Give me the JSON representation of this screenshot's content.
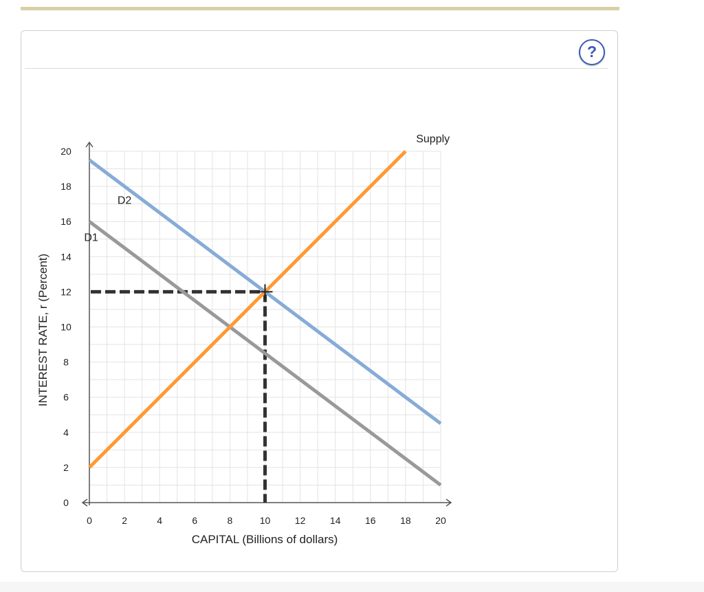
{
  "help": {
    "label": "?"
  },
  "colors": {
    "accent_rule": "#d9cfa6",
    "d1": "#999999",
    "d2": "#85acd6",
    "supply": "#ff9933",
    "guide": "#333333",
    "grid": "#e3e3e3"
  },
  "chart_data": {
    "type": "line",
    "xlabel": "CAPITAL (Billions of dollars)",
    "ylabel": "INTEREST RATE, r (Percent)",
    "xlim": [
      0,
      20
    ],
    "ylim": [
      0,
      20
    ],
    "xticks": [
      "0",
      "2",
      "4",
      "6",
      "8",
      "10",
      "12",
      "14",
      "16",
      "18",
      "20"
    ],
    "yticks": [
      "0",
      "2",
      "4",
      "6",
      "8",
      "10",
      "12",
      "14",
      "16",
      "18",
      "20"
    ],
    "grid": true,
    "series": [
      {
        "name": "D1",
        "color": "#999999",
        "points": [
          [
            0,
            16
          ],
          [
            20,
            1
          ]
        ]
      },
      {
        "name": "D2",
        "color": "#85acd6",
        "points": [
          [
            0,
            19.5
          ],
          [
            20,
            4.5
          ]
        ]
      },
      {
        "name": "Supply",
        "color": "#ff9933",
        "points": [
          [
            0,
            2
          ],
          [
            18,
            20
          ]
        ]
      }
    ],
    "labels": {
      "D1": "D1",
      "D2": "D2",
      "Supply": "Supply"
    },
    "equilibrium": {
      "x": 10,
      "y": 12
    }
  }
}
